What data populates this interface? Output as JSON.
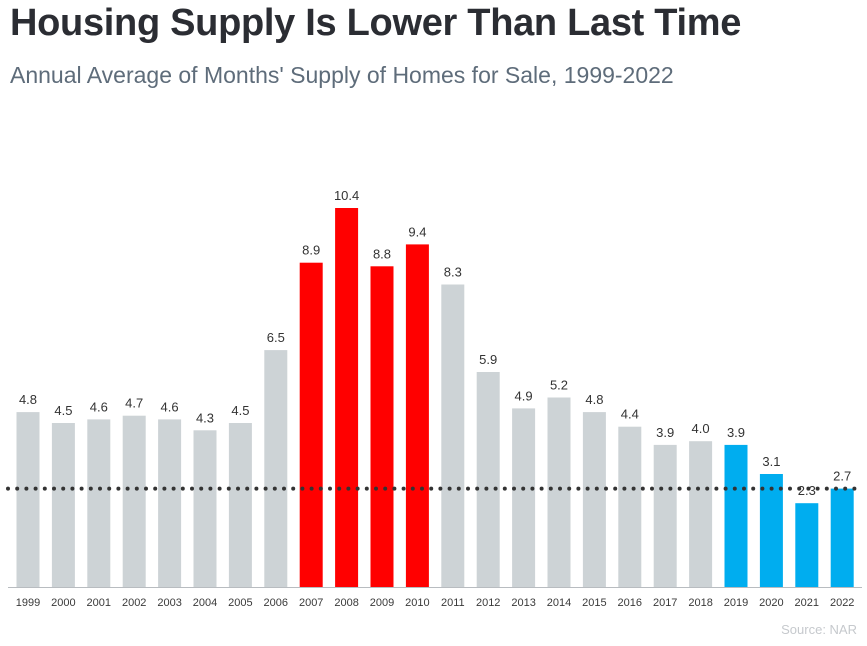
{
  "header": {
    "title": "Housing Supply Is Lower Than Last Time",
    "subtitle": "Annual Average of Months' Supply of Homes for Sale, 1999-2022"
  },
  "footer": {
    "source": "Source: NAR"
  },
  "colors": {
    "gray": "#cdd3d6",
    "red": "#ff0000",
    "blue": "#00adef",
    "reference_line": "#333333"
  },
  "chart_data": {
    "type": "bar",
    "title": "Housing Supply Is Lower Than Last Time",
    "subtitle": "Annual Average of Months' Supply of Homes for Sale, 1999-2022",
    "categories": [
      "1999",
      "2000",
      "2001",
      "2002",
      "2003",
      "2004",
      "2005",
      "2006",
      "2007",
      "2008",
      "2009",
      "2010",
      "2011",
      "2012",
      "2013",
      "2014",
      "2015",
      "2016",
      "2017",
      "2018",
      "2019",
      "2020",
      "2021",
      "2022"
    ],
    "values": [
      4.8,
      4.5,
      4.6,
      4.7,
      4.6,
      4.3,
      4.5,
      6.5,
      8.9,
      10.4,
      8.8,
      9.4,
      8.3,
      5.9,
      4.9,
      5.2,
      4.8,
      4.4,
      3.9,
      4.0,
      3.9,
      3.1,
      2.3,
      2.7
    ],
    "value_labels": [
      "4.8",
      "4.5",
      "4.6",
      "4.7",
      "4.6",
      "4.3",
      "4.5",
      "6.5",
      "8.9",
      "10.4",
      "8.8",
      "9.4",
      "8.3",
      "5.9",
      "4.9",
      "5.2",
      "4.8",
      "4.4",
      "3.9",
      "4.0",
      "3.9",
      "3.1",
      "2.3",
      "2.7"
    ],
    "bar_colors": [
      "gray",
      "gray",
      "gray",
      "gray",
      "gray",
      "gray",
      "gray",
      "gray",
      "red",
      "red",
      "red",
      "red",
      "gray",
      "gray",
      "gray",
      "gray",
      "gray",
      "gray",
      "gray",
      "gray",
      "blue",
      "blue",
      "blue",
      "blue"
    ],
    "reference_line": {
      "value": 2.7,
      "style": "dotted"
    },
    "ylim": [
      0,
      10.4
    ],
    "xlabel": "",
    "ylabel": "",
    "grid": false,
    "legend": "none",
    "source": "Source: NAR"
  }
}
